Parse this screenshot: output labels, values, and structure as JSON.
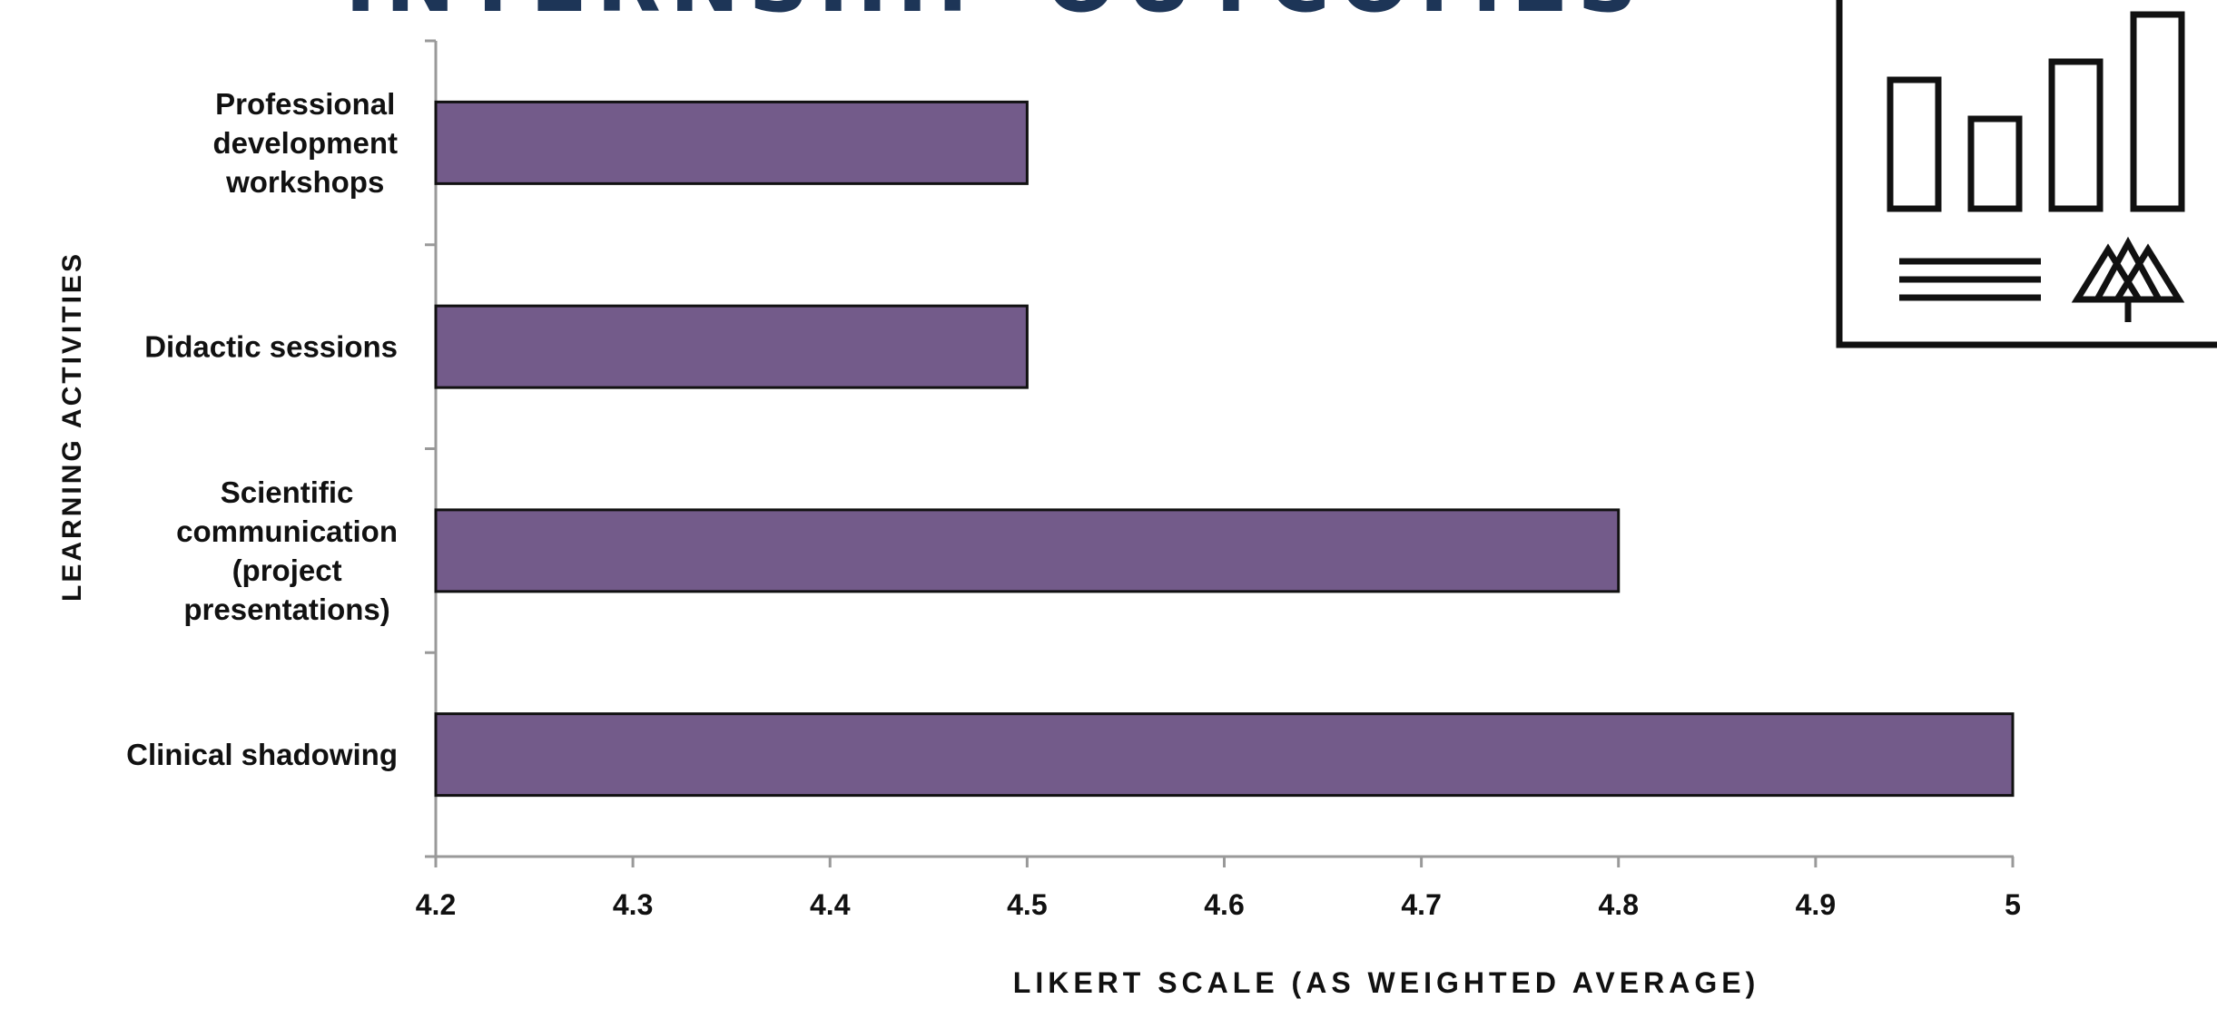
{
  "chart_data": {
    "type": "bar",
    "orientation": "horizontal",
    "title": "INTERNSHIP OUTCOMES",
    "categories": [
      "Professional development workshops",
      "Didactic sessions",
      "Scientific communication (project presentations)",
      "Clinical shadowing"
    ],
    "category_label_lines": [
      [
        "Professional",
        "development",
        "workshops"
      ],
      [
        "Didactic sessions"
      ],
      [
        "Scientific",
        "communication",
        "(project",
        "presentations)"
      ],
      [
        "Clinical shadowing"
      ]
    ],
    "values": [
      4.5,
      4.5,
      4.8,
      5.0
    ],
    "xlabel": "LIKERT SCALE (AS WEIGHTED AVERAGE)",
    "ylabel": "LEARNING ACTIVITIES",
    "xlim": [
      4.2,
      5.0
    ],
    "xticks": [
      "4.2",
      "4.3",
      "4.4",
      "4.5",
      "4.6",
      "4.7",
      "4.8",
      "4.9",
      "5"
    ],
    "grid": false,
    "legend": "none",
    "bar_color": "#735b8a",
    "bar_border_color": "#111111"
  },
  "decoration": {
    "icon": "chart-presentation-icon"
  }
}
